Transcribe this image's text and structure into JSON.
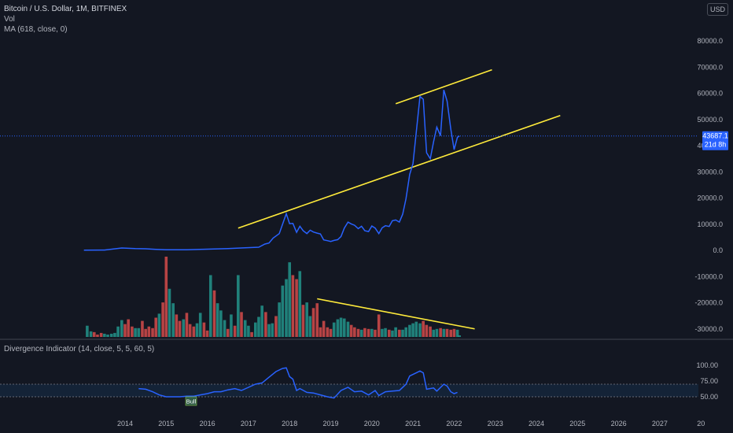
{
  "legend": {
    "title": "Bitcoin / U.S. Dollar, 1M, BITFINEX",
    "vol": "Vol",
    "ma": "MA (618, close, 0)",
    "indicator": "Divergence Indicator (14, close, 5, 5, 60, 5)"
  },
  "currency": "USD",
  "last_price": {
    "value": "43687.1",
    "countdown": "21d 8h"
  },
  "bull_label": "Bull",
  "colors": {
    "background": "#131722",
    "price_line": "#2962ff",
    "trendline": "#ffeb3b",
    "volume_up": "#26a69a",
    "volume_down": "#ef5350",
    "rsi_band": "#2196f3",
    "axis_text": "#b2b5be"
  },
  "chart_data": [
    {
      "type": "line",
      "name": "price",
      "y_ticks": [
        "80000.0",
        "70000.0",
        "60000.0",
        "50000.0",
        "40000.0",
        "30000.0",
        "20000.0",
        "10000.0",
        "0.0",
        "-10000.0",
        "-20000.0",
        "-30000.0"
      ],
      "x_ticks": [
        "2014",
        "2015",
        "2016",
        "2017",
        "2018",
        "2019",
        "2020",
        "2021",
        "2022",
        "2023",
        "2024",
        "2025",
        "2026",
        "2027",
        "20"
      ],
      "ylim": [
        -33000,
        92000
      ],
      "series": [
        {
          "points": [
            [
              2013.0,
              100
            ],
            [
              2013.5,
              110
            ],
            [
              2013.92,
              900
            ],
            [
              2014.25,
              650
            ],
            [
              2014.5,
              600
            ],
            [
              2014.75,
              400
            ],
            [
              2015.0,
              250
            ],
            [
              2015.5,
              250
            ],
            [
              2015.92,
              430
            ],
            [
              2016.5,
              650
            ],
            [
              2016.92,
              960
            ],
            [
              2017.25,
              1200
            ],
            [
              2017.4,
              2400
            ],
            [
              2017.5,
              2800
            ],
            [
              2017.6,
              4700
            ],
            [
              2017.75,
              6400
            ],
            [
              2017.83,
              10000
            ],
            [
              2017.92,
              14000
            ],
            [
              2018.0,
              10200
            ],
            [
              2018.08,
              10300
            ],
            [
              2018.17,
              6900
            ],
            [
              2018.25,
              9200
            ],
            [
              2018.33,
              7500
            ],
            [
              2018.42,
              6400
            ],
            [
              2018.5,
              7700
            ],
            [
              2018.58,
              7000
            ],
            [
              2018.67,
              6600
            ],
            [
              2018.75,
              6300
            ],
            [
              2018.83,
              4000
            ],
            [
              2018.92,
              3700
            ],
            [
              2019.0,
              3400
            ],
            [
              2019.08,
              3800
            ],
            [
              2019.17,
              4100
            ],
            [
              2019.25,
              5300
            ],
            [
              2019.33,
              8500
            ],
            [
              2019.42,
              10800
            ],
            [
              2019.5,
              10100
            ],
            [
              2019.58,
              9600
            ],
            [
              2019.67,
              8300
            ],
            [
              2019.75,
              9200
            ],
            [
              2019.83,
              7500
            ],
            [
              2019.92,
              7200
            ],
            [
              2020.0,
              9300
            ],
            [
              2020.08,
              8500
            ],
            [
              2020.17,
              6400
            ],
            [
              2020.25,
              8600
            ],
            [
              2020.33,
              9400
            ],
            [
              2020.42,
              9100
            ],
            [
              2020.5,
              11300
            ],
            [
              2020.58,
              11600
            ],
            [
              2020.67,
              10800
            ],
            [
              2020.75,
              13800
            ],
            [
              2020.83,
              19700
            ],
            [
              2020.92,
              29000
            ],
            [
              2021.0,
              33100
            ],
            [
              2021.08,
              45200
            ],
            [
              2021.17,
              58800
            ],
            [
              2021.25,
              57700
            ],
            [
              2021.33,
              37300
            ],
            [
              2021.42,
              35000
            ],
            [
              2021.5,
              41500
            ],
            [
              2021.58,
              47100
            ],
            [
              2021.67,
              43800
            ],
            [
              2021.75,
              61300
            ],
            [
              2021.83,
              57000
            ],
            [
              2021.92,
              46300
            ],
            [
              2022.0,
              38500
            ],
            [
              2022.08,
              43200
            ],
            [
              2022.13,
              43687
            ]
          ]
        }
      ],
      "trendlines": [
        {
          "name": "upper-channel",
          "from": [
            2020.58,
            56000
          ],
          "to": [
            2022.92,
            69000
          ]
        },
        {
          "name": "lower-channel",
          "from": [
            2016.75,
            8500
          ],
          "to": [
            2024.58,
            51500
          ]
        },
        {
          "name": "volume-divergence",
          "from": [
            2018.67,
            -18500
          ],
          "to": [
            2022.5,
            -30000
          ]
        }
      ],
      "volume": {
        "ylim_relative": true,
        "bars": [
          [
            2013.08,
            14,
            1
          ],
          [
            2013.17,
            7,
            1
          ],
          [
            2013.25,
            6,
            0
          ],
          [
            2013.33,
            3,
            0
          ],
          [
            2013.42,
            5,
            0
          ],
          [
            2013.5,
            4,
            1
          ],
          [
            2013.58,
            3,
            1
          ],
          [
            2013.67,
            4,
            1
          ],
          [
            2013.75,
            5,
            1
          ],
          [
            2013.83,
            13,
            1
          ],
          [
            2013.92,
            21,
            1
          ],
          [
            2014.0,
            16,
            0
          ],
          [
            2014.08,
            22,
            0
          ],
          [
            2014.17,
            13,
            0
          ],
          [
            2014.25,
            11,
            1
          ],
          [
            2014.33,
            11,
            1
          ],
          [
            2014.42,
            20,
            0
          ],
          [
            2014.5,
            10,
            0
          ],
          [
            2014.58,
            13,
            0
          ],
          [
            2014.67,
            11,
            0
          ],
          [
            2014.75,
            24,
            0
          ],
          [
            2014.83,
            29,
            1
          ],
          [
            2014.92,
            43,
            0
          ],
          [
            2015.0,
            100,
            0
          ],
          [
            2015.08,
            60,
            1
          ],
          [
            2015.17,
            42,
            1
          ],
          [
            2015.25,
            28,
            0
          ],
          [
            2015.33,
            20,
            0
          ],
          [
            2015.42,
            22,
            1
          ],
          [
            2015.5,
            30,
            0
          ],
          [
            2015.58,
            16,
            0
          ],
          [
            2015.67,
            13,
            0
          ],
          [
            2015.75,
            17,
            1
          ],
          [
            2015.83,
            30,
            1
          ],
          [
            2015.92,
            18,
            0
          ],
          [
            2016.0,
            8,
            0
          ],
          [
            2016.08,
            77,
            1
          ],
          [
            2016.17,
            58,
            0
          ],
          [
            2016.25,
            42,
            1
          ],
          [
            2016.33,
            33,
            1
          ],
          [
            2016.42,
            21,
            1
          ],
          [
            2016.5,
            10,
            0
          ],
          [
            2016.58,
            28,
            1
          ],
          [
            2016.67,
            14,
            0
          ],
          [
            2016.75,
            77,
            1
          ],
          [
            2016.83,
            31,
            0
          ],
          [
            2016.92,
            21,
            1
          ],
          [
            2017.0,
            14,
            1
          ],
          [
            2017.08,
            6,
            0
          ],
          [
            2017.17,
            18,
            1
          ],
          [
            2017.25,
            25,
            1
          ],
          [
            2017.33,
            39,
            1
          ],
          [
            2017.42,
            31,
            0
          ],
          [
            2017.5,
            16,
            1
          ],
          [
            2017.58,
            17,
            1
          ],
          [
            2017.67,
            26,
            0
          ],
          [
            2017.75,
            43,
            1
          ],
          [
            2017.83,
            64,
            1
          ],
          [
            2017.92,
            72,
            1
          ],
          [
            2018.0,
            93,
            1
          ],
          [
            2018.08,
            77,
            0
          ],
          [
            2018.17,
            72,
            0
          ],
          [
            2018.25,
            82,
            1
          ],
          [
            2018.33,
            40,
            0
          ],
          [
            2018.42,
            43,
            1
          ],
          [
            2018.5,
            26,
            1
          ],
          [
            2018.58,
            36,
            0
          ],
          [
            2018.67,
            42,
            0
          ],
          [
            2018.75,
            12,
            0
          ],
          [
            2018.83,
            20,
            0
          ],
          [
            2018.92,
            12,
            0
          ],
          [
            2019.0,
            10,
            0
          ],
          [
            2019.08,
            18,
            1
          ],
          [
            2019.17,
            22,
            1
          ],
          [
            2019.25,
            24,
            1
          ],
          [
            2019.33,
            23,
            1
          ],
          [
            2019.42,
            19,
            1
          ],
          [
            2019.5,
            15,
            0
          ],
          [
            2019.58,
            12,
            0
          ],
          [
            2019.67,
            10,
            0
          ],
          [
            2019.75,
            9,
            1
          ],
          [
            2019.83,
            11,
            0
          ],
          [
            2019.92,
            10,
            0
          ],
          [
            2020.0,
            10,
            1
          ],
          [
            2020.08,
            9,
            0
          ],
          [
            2020.17,
            28,
            0
          ],
          [
            2020.25,
            10,
            1
          ],
          [
            2020.33,
            11,
            1
          ],
          [
            2020.42,
            9,
            0
          ],
          [
            2020.5,
            8,
            1
          ],
          [
            2020.58,
            12,
            1
          ],
          [
            2020.67,
            9,
            0
          ],
          [
            2020.75,
            9,
            1
          ],
          [
            2020.83,
            12,
            1
          ],
          [
            2020.92,
            15,
            1
          ],
          [
            2021.0,
            17,
            1
          ],
          [
            2021.08,
            19,
            1
          ],
          [
            2021.17,
            17,
            1
          ],
          [
            2021.25,
            20,
            0
          ],
          [
            2021.33,
            15,
            0
          ],
          [
            2021.42,
            13,
            0
          ],
          [
            2021.5,
            9,
            1
          ],
          [
            2021.58,
            10,
            1
          ],
          [
            2021.67,
            11,
            0
          ],
          [
            2021.75,
            10,
            1
          ],
          [
            2021.83,
            10,
            0
          ],
          [
            2021.92,
            9,
            0
          ],
          [
            2022.0,
            10,
            0
          ],
          [
            2022.08,
            9,
            1
          ],
          [
            2022.13,
            2,
            1
          ]
        ]
      }
    },
    {
      "type": "line",
      "name": "divergence-indicator",
      "y_ticks": [
        "100.00",
        "75.00",
        "50.00"
      ],
      "ylim": [
        20,
        108
      ],
      "band": [
        50,
        70
      ],
      "midline": 50,
      "series": [
        {
          "points": [
            [
              2014.33,
              63
            ],
            [
              2014.5,
              62
            ],
            [
              2014.67,
              58
            ],
            [
              2014.83,
              53
            ],
            [
              2015.0,
              50
            ],
            [
              2015.17,
              50
            ],
            [
              2015.33,
              50
            ],
            [
              2015.5,
              51
            ],
            [
              2015.67,
              51
            ],
            [
              2015.83,
              53
            ],
            [
              2016.0,
              55
            ],
            [
              2016.17,
              58
            ],
            [
              2016.33,
              58
            ],
            [
              2016.5,
              61
            ],
            [
              2016.67,
              63
            ],
            [
              2016.83,
              60
            ],
            [
              2017.0,
              65
            ],
            [
              2017.17,
              70
            ],
            [
              2017.33,
              72
            ],
            [
              2017.5,
              81
            ],
            [
              2017.67,
              90
            ],
            [
              2017.83,
              95
            ],
            [
              2017.92,
              96
            ],
            [
              2018.0,
              82
            ],
            [
              2018.08,
              78
            ],
            [
              2018.17,
              60
            ],
            [
              2018.25,
              63
            ],
            [
              2018.42,
              57
            ],
            [
              2018.58,
              56
            ],
            [
              2018.75,
              53
            ],
            [
              2018.92,
              50
            ],
            [
              2019.08,
              48
            ],
            [
              2019.25,
              60
            ],
            [
              2019.42,
              65
            ],
            [
              2019.58,
              58
            ],
            [
              2019.75,
              59
            ],
            [
              2019.92,
              53
            ],
            [
              2020.08,
              60
            ],
            [
              2020.17,
              52
            ],
            [
              2020.33,
              58
            ],
            [
              2020.5,
              59
            ],
            [
              2020.67,
              60
            ],
            [
              2020.83,
              70
            ],
            [
              2020.92,
              83
            ],
            [
              2021.08,
              88
            ],
            [
              2021.17,
              91
            ],
            [
              2021.25,
              88
            ],
            [
              2021.33,
              62
            ],
            [
              2021.5,
              64
            ],
            [
              2021.58,
              59
            ],
            [
              2021.75,
              70
            ],
            [
              2021.83,
              67
            ],
            [
              2021.92,
              58
            ],
            [
              2022.0,
              55
            ],
            [
              2022.08,
              57
            ]
          ]
        }
      ]
    }
  ]
}
